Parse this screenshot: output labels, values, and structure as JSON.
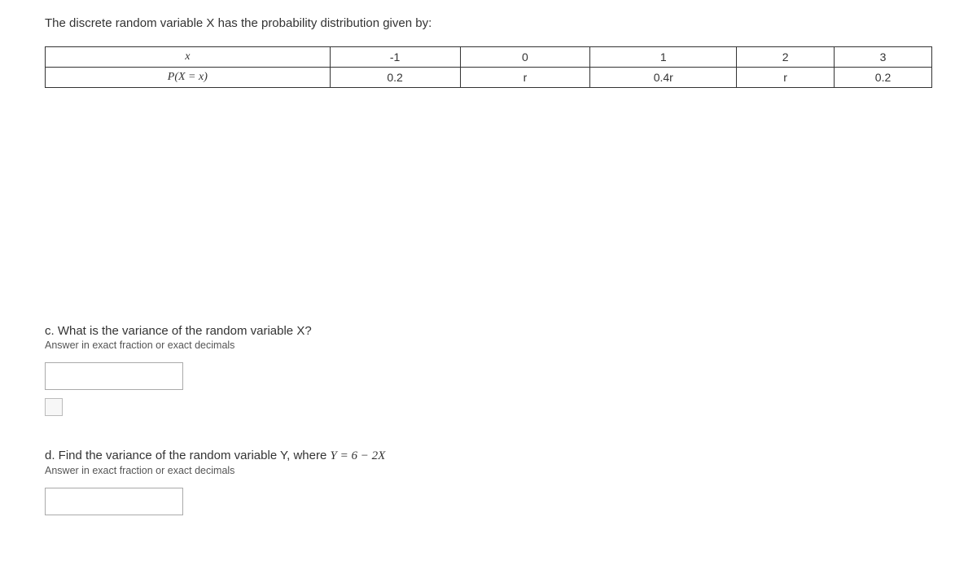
{
  "intro": "The discrete random variable X has the probability distribution given by:",
  "table": {
    "row1": {
      "label": "x",
      "c1": "-1",
      "c2": "0",
      "c3": "1",
      "c4": "2",
      "c5": "3"
    },
    "row2": {
      "label": "P(X = x)",
      "c1": "0.2",
      "c2": "r",
      "c3": "0.4r",
      "c4": "r",
      "c5": "0.2"
    }
  },
  "qc": {
    "text": "c. What is the variance of the random variable X?",
    "hint": "Answer in exact fraction or exact decimals"
  },
  "qd": {
    "text_prefix": "d. Find the variance of the random variable Y, where ",
    "equation": "Y = 6 − 2X",
    "hint": "Answer in exact fraction or exact decimals"
  }
}
